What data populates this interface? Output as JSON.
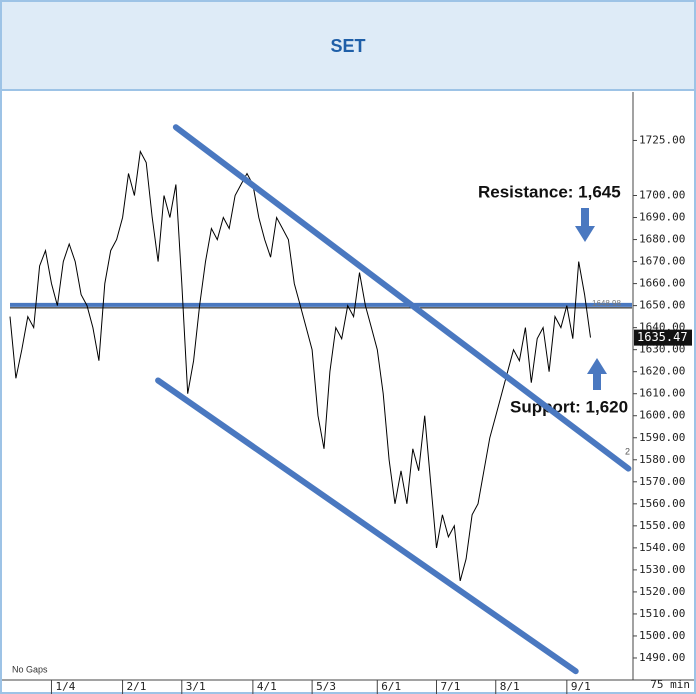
{
  "chart_data": {
    "type": "line",
    "title": "SET",
    "color": "#000000",
    "values": [
      1645,
      1617,
      1630,
      1645,
      1640,
      1668,
      1675,
      1660,
      1650,
      1670,
      1678,
      1670,
      1655,
      1650,
      1640,
      1625,
      1660,
      1675,
      1680,
      1690,
      1710,
      1700,
      1720,
      1715,
      1690,
      1670,
      1700,
      1690,
      1705,
      1660,
      1610,
      1625,
      1650,
      1670,
      1685,
      1680,
      1690,
      1685,
      1700,
      1705,
      1710,
      1705,
      1690,
      1680,
      1672,
      1690,
      1685,
      1680,
      1660,
      1650,
      1640,
      1630,
      1600,
      1585,
      1620,
      1640,
      1635,
      1650,
      1645,
      1665,
      1650,
      1640,
      1630,
      1610,
      1580,
      1560,
      1575,
      1560,
      1585,
      1575,
      1600,
      1570,
      1540,
      1555,
      1545,
      1550,
      1525,
      1535,
      1555,
      1560,
      1575,
      1590,
      1600,
      1610,
      1620,
      1630,
      1625,
      1640,
      1615,
      1635,
      1640,
      1620,
      1645,
      1640,
      1650,
      1635,
      1670,
      1655,
      1635.47
    ],
    "xlim": [
      0,
      105
    ],
    "xticks": [
      {
        "value": 7,
        "label": "1/4"
      },
      {
        "value": 19,
        "label": "2/1"
      },
      {
        "value": 29,
        "label": "3/1"
      },
      {
        "value": 41,
        "label": "4/1"
      },
      {
        "value": 51,
        "label": "5/3"
      },
      {
        "value": 62,
        "label": "6/1"
      },
      {
        "value": 72,
        "label": "7/1"
      },
      {
        "value": 82,
        "label": "8/1"
      },
      {
        "value": 94,
        "label": "9/1"
      }
    ],
    "ylim": [
      1480,
      1747
    ],
    "yticks": [
      {
        "value": 1725,
        "label": "1725.00"
      },
      {
        "value": 1700,
        "label": "1700.00"
      },
      {
        "value": 1690,
        "label": "1690.00"
      },
      {
        "value": 1680,
        "label": "1680.00"
      },
      {
        "value": 1670,
        "label": "1670.00"
      },
      {
        "value": 1660,
        "label": "1660.00"
      },
      {
        "value": 1650,
        "label": "1650.00"
      },
      {
        "value": 1640,
        "label": "1640.00"
      },
      {
        "value": 1630,
        "label": "1630.00"
      },
      {
        "value": 1620,
        "label": "1620.00"
      },
      {
        "value": 1610,
        "label": "1610.00"
      },
      {
        "value": 1600,
        "label": "1600.00"
      },
      {
        "value": 1590,
        "label": "1590.00"
      },
      {
        "value": 1580,
        "label": "1580.00"
      },
      {
        "value": 1570,
        "label": "1570.00"
      },
      {
        "value": 1560,
        "label": "1560.00"
      },
      {
        "value": 1550,
        "label": "1550.00"
      },
      {
        "value": 1540,
        "label": "1540.00"
      },
      {
        "value": 1530,
        "label": "1530.00"
      },
      {
        "value": 1520,
        "label": "1520.00"
      },
      {
        "value": 1510,
        "label": "1510.00"
      },
      {
        "value": 1500,
        "label": "1500.00"
      },
      {
        "value": 1490,
        "label": "1490.00"
      }
    ],
    "reference_level": 1648.98,
    "trendline_color": "#4a78c0",
    "trendlines": [
      {
        "points": [
          [
            28,
            1731
          ],
          [
            104.4,
            1576
          ]
        ]
      },
      {
        "points": [
          [
            25,
            1616
          ],
          [
            95.5,
            1484
          ]
        ]
      }
    ],
    "annotations": [
      {
        "text": "Resistance: 1,645"
      },
      {
        "text": "Support: 1,620"
      }
    ],
    "channel_label": "2",
    "gaps_note": "No Gaps",
    "interval_note": "75 min"
  }
}
